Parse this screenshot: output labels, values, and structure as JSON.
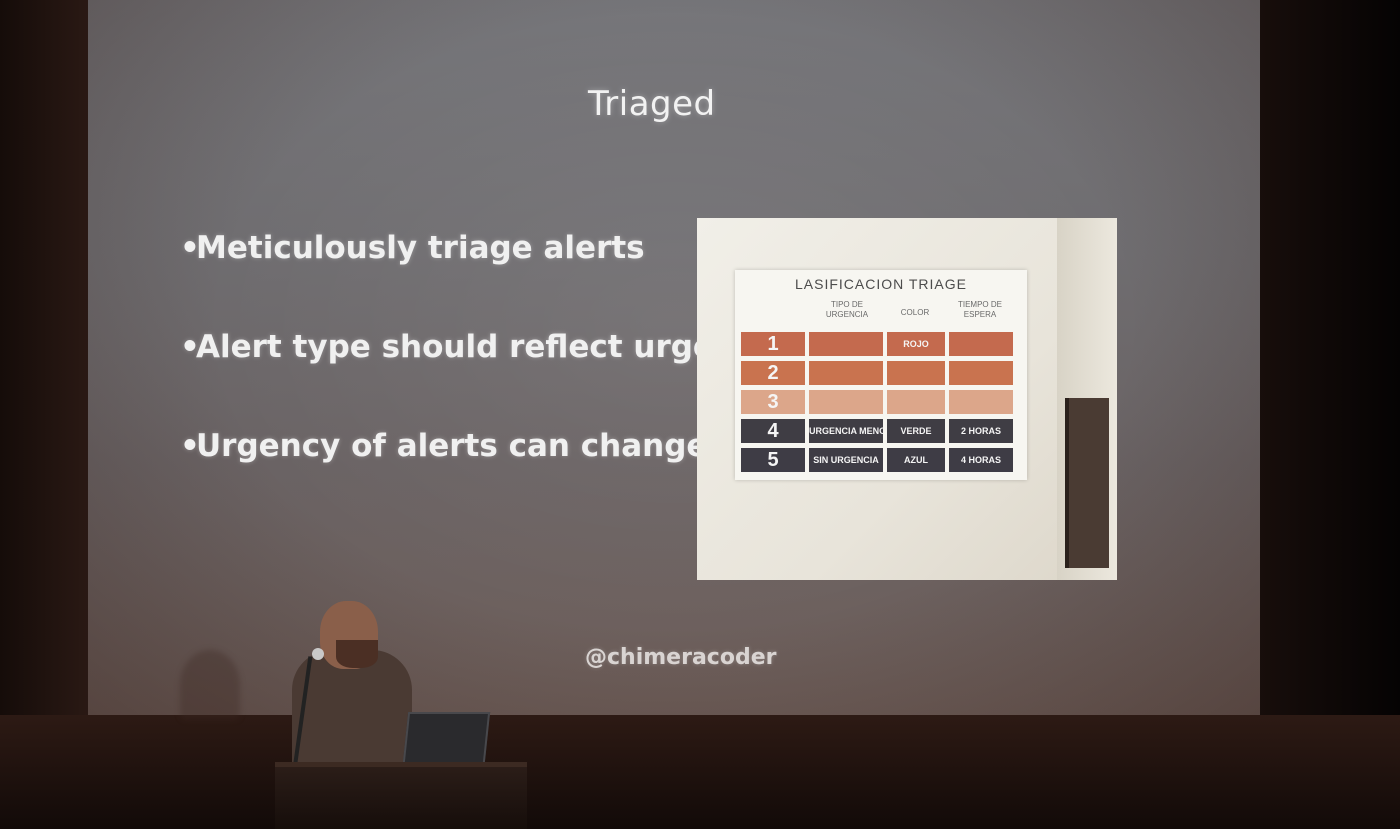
{
  "slide": {
    "title": "Triaged",
    "bullets": [
      "Meticulously triage alerts",
      "Alert type should reflect urgency",
      "Urgency of alerts can change"
    ],
    "watermark": "@chimeracoder"
  },
  "embedded_photo": {
    "poster_title": "LASIFICACION TRIAGE",
    "headers": [
      "TIPO DE URGENCIA",
      "COLOR",
      "TIEMPO DE ESPERA"
    ],
    "rows": [
      {
        "level": "1",
        "type": "",
        "color": "ROJO",
        "wait": "",
        "fill": "#c46a4e"
      },
      {
        "level": "2",
        "type": "",
        "color": "",
        "wait": "",
        "fill": "#c9734f"
      },
      {
        "level": "3",
        "type": "",
        "color": "",
        "wait": "",
        "fill": "#dca68a"
      },
      {
        "level": "4",
        "type": "URGENCIA MENOR",
        "color": "VERDE",
        "wait": "2 HORAS",
        "fill": "#3f3d44"
      },
      {
        "level": "5",
        "type": "SIN URGENCIA",
        "color": "AZUL",
        "wait": "4 HORAS",
        "fill": "#3e3c45"
      }
    ]
  },
  "colors": {
    "screen": "#72706f",
    "slide_text": "#f0f0f0"
  }
}
